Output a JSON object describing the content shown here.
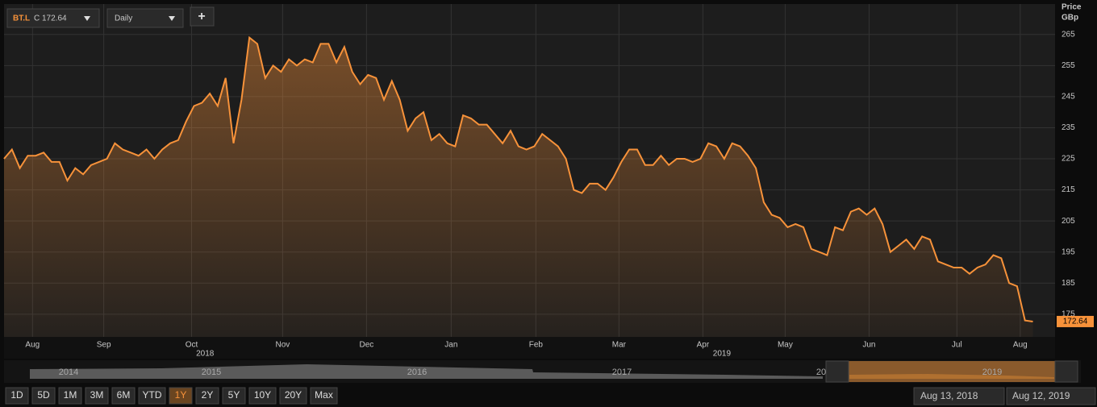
{
  "toolbar": {
    "symbol": "BT.L",
    "price_prefix": "C",
    "interval": "Daily",
    "add": "+"
  },
  "chart_data": {
    "type": "line",
    "y_axis_title": [
      "Price",
      "GBp"
    ],
    "color": "#f7923a",
    "values": [
      225,
      228,
      222,
      226,
      226,
      227,
      224,
      224,
      218,
      222,
      220,
      223,
      224,
      225,
      230,
      228,
      227,
      226,
      228,
      225,
      228,
      230,
      231,
      237,
      242,
      243,
      246,
      242,
      251,
      230,
      244,
      264,
      262,
      251,
      255,
      253,
      257,
      255,
      257,
      256,
      262,
      262,
      256,
      261,
      253,
      249,
      252,
      251,
      244,
      250,
      244,
      234,
      238,
      240,
      231,
      233,
      230,
      229,
      239,
      238,
      236,
      236,
      233,
      230,
      234,
      229,
      228,
      229,
      233,
      231,
      229,
      225,
      215,
      214,
      217,
      217,
      215,
      219,
      224,
      228,
      228,
      223,
      223,
      226,
      223,
      225,
      225,
      224,
      225,
      230,
      229,
      225,
      230,
      229,
      226,
      222,
      211,
      207,
      206,
      203,
      204,
      203,
      196,
      195,
      194,
      203,
      202,
      208,
      209,
      207,
      209,
      204,
      195,
      197,
      199,
      196,
      200,
      199,
      192,
      191,
      190,
      190,
      188,
      190,
      191,
      194,
      193,
      185,
      184,
      173,
      172.64
    ],
    "xlim": [
      0,
      132.8
    ],
    "ylim": [
      167.7,
      274.8
    ],
    "yticks": [
      175,
      185,
      195,
      205,
      215,
      225,
      235,
      245,
      255,
      265
    ],
    "xticks": [
      {
        "value": 3.6,
        "label": "Aug"
      },
      {
        "value": 12.6,
        "label": "Sep"
      },
      {
        "value": 23.7,
        "label": "Oct"
      },
      {
        "value": 35.2,
        "label": "Nov"
      },
      {
        "value": 45.8,
        "label": "Dec"
      },
      {
        "value": 56.5,
        "label": "Jan"
      },
      {
        "value": 67.2,
        "label": "Feb"
      },
      {
        "value": 77.7,
        "label": "Mar"
      },
      {
        "value": 88.3,
        "label": "Apr"
      },
      {
        "value": 98.7,
        "label": "May"
      },
      {
        "value": 109.3,
        "label": "Jun"
      },
      {
        "value": 120.4,
        "label": "Jul"
      },
      {
        "value": 128.4,
        "label": "Aug"
      }
    ],
    "year_ticks": [
      {
        "value": 25.4,
        "label": "2018"
      },
      {
        "value": 90.7,
        "label": "2019"
      }
    ],
    "grid": true
  },
  "navigator": {
    "years": [
      "2014",
      "2015",
      "2016",
      "2017",
      "20",
      "2019"
    ]
  },
  "range_buttons": [
    "1D",
    "5D",
    "1M",
    "3M",
    "6M",
    "YTD",
    "1Y",
    "2Y",
    "5Y",
    "10Y",
    "20Y",
    "Max"
  ],
  "selected_range": "1Y",
  "date_range": {
    "from": "Aug 13, 2018",
    "to": "Aug 12, 2019"
  }
}
